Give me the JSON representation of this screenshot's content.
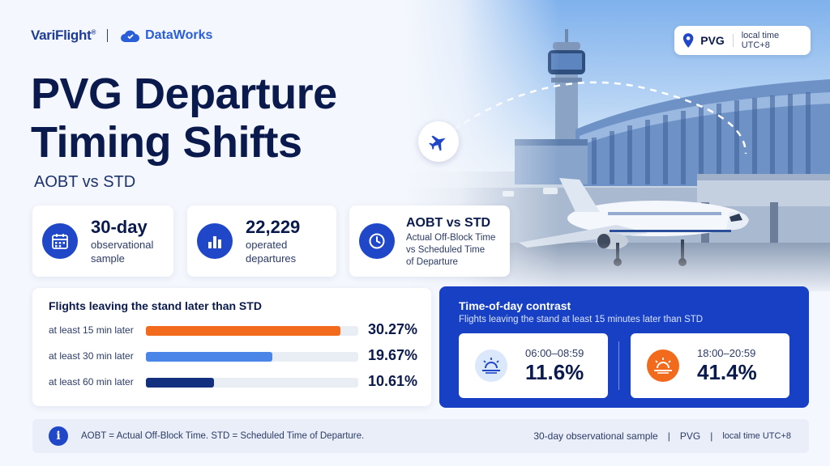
{
  "brand": {
    "primary": "VariFlight",
    "primary_mark": "®",
    "secondary": "DataWorks"
  },
  "title_line1": "PVG Departure",
  "title_line2": "Timing Shifts",
  "subtitle": "AOBT vs STD",
  "location": {
    "code": "PVG",
    "timezone": "local time UTC+8",
    "icon": "map-pin-icon"
  },
  "stats": [
    {
      "big": "30-day",
      "small": [
        "observational",
        "sample"
      ],
      "icon": "calendar-icon"
    },
    {
      "big": "22,229",
      "small": [
        "operated",
        "departures"
      ],
      "icon": "bar-chart-icon"
    },
    {
      "big": "AOBT vs STD",
      "small": [
        "Actual Off-Block Time",
        "vs Scheduled Time",
        "of Departure"
      ],
      "icon": "clock-icon"
    }
  ],
  "chart_data": {
    "type": "bar",
    "title": "Flights leaving the stand later than STD",
    "categories": [
      "at least 15 min later",
      "at least 30 min later",
      "at least 60 min later"
    ],
    "values": [
      30.27,
      19.67,
      10.61
    ],
    "value_labels": [
      "30.27%",
      "19.67%",
      "10.61%"
    ],
    "colors": [
      "#f26a1b",
      "#4a86e8",
      "#12307e"
    ],
    "ylim": [
      0,
      33
    ]
  },
  "contrast": {
    "title": "Time-of-day contrast",
    "subtitle": "Flights leaving the stand at least 15 minutes later than STD",
    "cards": [
      {
        "range": "06:00–08:59",
        "value": "11.6%",
        "icon": "sunrise-icon",
        "icon_bg": "#dbe7fb",
        "icon_color": "#1f47c8"
      },
      {
        "range": "18:00–20:59",
        "value": "41.4%",
        "icon": "sunset-icon",
        "icon_bg": "#f26a1b",
        "icon_color": "#ffffff"
      }
    ]
  },
  "footer": {
    "note": "AOBT = Actual Off-Block Time. STD = Scheduled Time of Departure.",
    "sample": "30-day observational sample",
    "sep": "|",
    "airport": "PVG",
    "timezone": "local time UTC+8"
  },
  "colors": {
    "navy": "#0b1a4d",
    "accent_blue": "#1f47c8",
    "orange": "#f26a1b"
  }
}
